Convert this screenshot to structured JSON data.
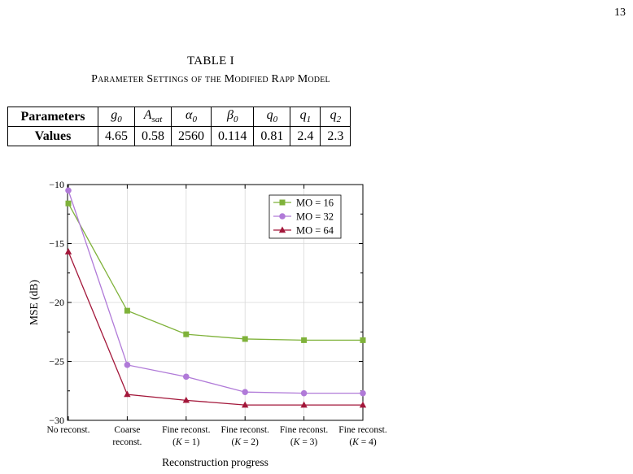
{
  "page": {
    "number": "13"
  },
  "table": {
    "label": "TABLE I",
    "title": "Parameter Settings of the Modified Rapp Model",
    "header": [
      {
        "base": "Parameters",
        "sub": ""
      },
      {
        "base": "g",
        "sub": "0"
      },
      {
        "base": "A",
        "sub": "sat"
      },
      {
        "base": "α",
        "sub": "0"
      },
      {
        "base": "β",
        "sub": "0"
      },
      {
        "base": "q",
        "sub": "0"
      },
      {
        "base": "q",
        "sub": "1"
      },
      {
        "base": "q",
        "sub": "2"
      }
    ],
    "row_label": "Values",
    "values": [
      "4.65",
      "0.58",
      "2560",
      "0.114",
      "0.81",
      "2.4",
      "2.3"
    ]
  },
  "chart_data": {
    "type": "line",
    "categories": [
      [
        "No reconst."
      ],
      [
        "Coarse",
        "reconst."
      ],
      [
        "Fine reconst.",
        "(K = 1)"
      ],
      [
        "Fine reconst.",
        "(K = 2)"
      ],
      [
        "Fine reconst.",
        "(K = 3)"
      ],
      [
        "Fine reconst.",
        "(K = 4)"
      ]
    ],
    "xlabel": "Reconstruction progress",
    "ylabel": "MSE (dB)",
    "ylim": [
      -30,
      -10
    ],
    "yticks": [
      -30,
      -25,
      -20,
      -15,
      -10
    ],
    "grid": true,
    "legend": "top-right",
    "series": [
      {
        "name": "MO = 16",
        "marker": "square",
        "color": "#7fb23a",
        "values": [
          -11.6,
          -20.7,
          -22.7,
          -23.1,
          -23.2,
          -23.2
        ]
      },
      {
        "name": "MO = 32",
        "marker": "circle",
        "color": "#b07ad8",
        "values": [
          -10.5,
          -25.3,
          -26.3,
          -27.6,
          -27.7,
          -27.7
        ]
      },
      {
        "name": "MO = 64",
        "marker": "triangle",
        "color": "#a3173a",
        "values": [
          -15.7,
          -27.8,
          -28.3,
          -28.7,
          -28.7,
          -28.7
        ]
      }
    ]
  }
}
